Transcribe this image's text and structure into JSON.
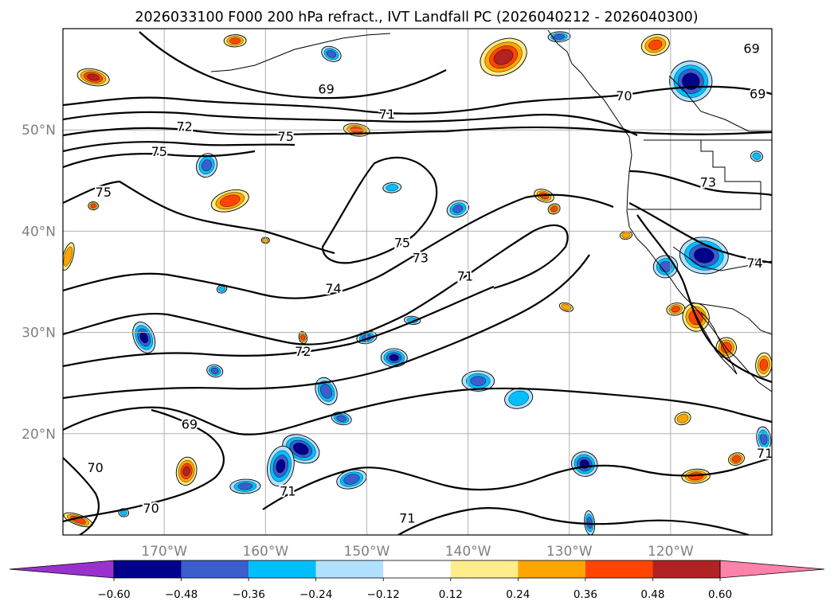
{
  "title": "2026033100 F000 200 hPa refract., IVT Landfall PC (2026040212 - 2026040300)",
  "map": {
    "lon_range": [
      -180,
      -110
    ],
    "lat_range": [
      10,
      60
    ],
    "lon_ticks": [
      {
        "value": -170,
        "label": "170°W"
      },
      {
        "value": -160,
        "label": "160°W"
      },
      {
        "value": -150,
        "label": "150°W"
      },
      {
        "value": -140,
        "label": "140°W"
      },
      {
        "value": -130,
        "label": "130°W"
      },
      {
        "value": -120,
        "label": "120°W"
      }
    ],
    "lat_ticks": [
      {
        "value": 20,
        "label": "20°N"
      },
      {
        "value": 30,
        "label": "30°N"
      },
      {
        "value": 40,
        "label": "40°N"
      },
      {
        "value": 50,
        "label": "50°N"
      }
    ],
    "contour_labels": [
      {
        "text": "69",
        "lon": -154,
        "lat": 54
      },
      {
        "text": "70",
        "lon": -124.6,
        "lat": 53.3
      },
      {
        "text": "69",
        "lon": -111.4,
        "lat": 53.5
      },
      {
        "text": "69",
        "lon": -112,
        "lat": 58
      },
      {
        "text": "72",
        "lon": -168,
        "lat": 50.3
      },
      {
        "text": "71",
        "lon": -148,
        "lat": 51.5
      },
      {
        "text": "75",
        "lon": -158,
        "lat": 49.3
      },
      {
        "text": "75",
        "lon": -170.5,
        "lat": 47.8
      },
      {
        "text": "75",
        "lon": -176,
        "lat": 43.8
      },
      {
        "text": "73",
        "lon": -116.3,
        "lat": 44.8
      },
      {
        "text": "75",
        "lon": -146.5,
        "lat": 38.8
      },
      {
        "text": "73",
        "lon": -144.7,
        "lat": 37.3
      },
      {
        "text": "71",
        "lon": -140.3,
        "lat": 35.5
      },
      {
        "text": "74",
        "lon": -111.7,
        "lat": 36.8
      },
      {
        "text": "74",
        "lon": -153.3,
        "lat": 34.3
      },
      {
        "text": "72",
        "lon": -156.3,
        "lat": 28.1
      },
      {
        "text": "69",
        "lon": -167.5,
        "lat": 20.9
      },
      {
        "text": "70",
        "lon": -176.8,
        "lat": 16.6
      },
      {
        "text": "70",
        "lon": -171.3,
        "lat": 12.6
      },
      {
        "text": "71",
        "lon": -157.8,
        "lat": 14.3
      },
      {
        "text": "71",
        "lon": -146,
        "lat": 11.6
      },
      {
        "text": "71",
        "lon": -110.7,
        "lat": 18
      }
    ]
  },
  "colorbar": {
    "levels": [
      -0.72,
      -0.6,
      -0.48,
      -0.36,
      -0.24,
      -0.12,
      0.12,
      0.24,
      0.36,
      0.48,
      0.6,
      0.72
    ],
    "tick_labels": [
      "−0.60",
      "−0.48",
      "−0.36",
      "−0.24",
      "−0.12",
      "0.12",
      "0.24",
      "0.36",
      "0.48",
      "0.60"
    ],
    "colors": [
      "#9932cc",
      "#00008b",
      "#3a5fcd",
      "#00bfff",
      "#b0e2ff",
      "#ffffff",
      "#ffec8b",
      "#ffa500",
      "#ff4500",
      "#b22222",
      "#ff82ab"
    ],
    "extend": "both"
  },
  "blobs": [
    {
      "lon": -136.5,
      "lat": 57.2,
      "r": [
        2.4,
        1.7
      ],
      "v": 0.55
    },
    {
      "lon": -177,
      "lat": 55.2,
      "r": [
        1.6,
        0.8
      ],
      "v": 0.52
    },
    {
      "lon": -163,
      "lat": 58.8,
      "r": [
        1.1,
        0.6
      ],
      "v": 0.4
    },
    {
      "lon": -121.5,
      "lat": 58.4,
      "r": [
        1.4,
        1.0
      ],
      "v": 0.4
    },
    {
      "lon": -153.5,
      "lat": 57.5,
      "r": [
        1.0,
        0.7
      ],
      "v": -0.4
    },
    {
      "lon": -118,
      "lat": 54.8,
      "r": [
        2.1,
        2.0
      ],
      "v": -0.55
    },
    {
      "lon": -131,
      "lat": 59.2,
      "r": [
        1.1,
        0.5
      ],
      "v": -0.4
    },
    {
      "lon": -163.5,
      "lat": 43,
      "r": [
        1.9,
        1.0
      ],
      "v": 0.45
    },
    {
      "lon": -165.8,
      "lat": 46.5,
      "r": [
        1.0,
        1.2
      ],
      "v": -0.4
    },
    {
      "lon": -151,
      "lat": 50,
      "r": [
        1.3,
        0.6
      ],
      "v": 0.4
    },
    {
      "lon": -147.5,
      "lat": 44.3,
      "r": [
        0.9,
        0.5
      ],
      "v": -0.3
    },
    {
      "lon": -141,
      "lat": 42.2,
      "r": [
        1.1,
        0.8
      ],
      "v": -0.38
    },
    {
      "lon": -132.5,
      "lat": 43.5,
      "r": [
        1.0,
        0.6
      ],
      "v": 0.4
    },
    {
      "lon": -116.7,
      "lat": 37.6,
      "r": [
        2.4,
        1.8
      ],
      "v": -0.55
    },
    {
      "lon": -120.5,
      "lat": 36.5,
      "r": [
        1.2,
        1.1
      ],
      "v": -0.4
    },
    {
      "lon": -117.5,
      "lat": 31.5,
      "r": [
        1.3,
        1.4
      ],
      "v": 0.45
    },
    {
      "lon": -114.5,
      "lat": 28.5,
      "r": [
        1.0,
        1.0
      ],
      "v": 0.45
    },
    {
      "lon": -110.8,
      "lat": 26.8,
      "r": [
        0.8,
        1.2
      ],
      "v": 0.4
    },
    {
      "lon": -110.8,
      "lat": 19.5,
      "r": [
        0.7,
        1.2
      ],
      "v": -0.4
    },
    {
      "lon": -172,
      "lat": 29.5,
      "r": [
        1.0,
        1.6
      ],
      "v": -0.5
    },
    {
      "lon": -165,
      "lat": 26.2,
      "r": [
        0.8,
        0.6
      ],
      "v": -0.4
    },
    {
      "lon": -147.3,
      "lat": 27.5,
      "r": [
        1.3,
        0.9
      ],
      "v": -0.5
    },
    {
      "lon": -150,
      "lat": 29.5,
      "r": [
        1.0,
        0.6
      ],
      "v": -0.4
    },
    {
      "lon": -154,
      "lat": 24.2,
      "r": [
        1.0,
        1.4
      ],
      "v": -0.45
    },
    {
      "lon": -152.5,
      "lat": 21.5,
      "r": [
        1.0,
        0.6
      ],
      "v": -0.4
    },
    {
      "lon": -139,
      "lat": 25.2,
      "r": [
        1.6,
        1.0
      ],
      "v": -0.4
    },
    {
      "lon": -135,
      "lat": 23.5,
      "r": [
        1.4,
        1.0
      ],
      "v": -0.35
    },
    {
      "lon": -156.5,
      "lat": 18.5,
      "r": [
        1.9,
        1.3
      ],
      "v": -0.55
    },
    {
      "lon": -158.5,
      "lat": 16.8,
      "r": [
        1.3,
        2.0
      ],
      "v": -0.48
    },
    {
      "lon": -162,
      "lat": 14.8,
      "r": [
        1.5,
        0.7
      ],
      "v": -0.4
    },
    {
      "lon": -151.5,
      "lat": 15.5,
      "r": [
        1.5,
        0.9
      ],
      "v": -0.45
    },
    {
      "lon": -128.5,
      "lat": 17,
      "r": [
        1.3,
        1.2
      ],
      "v": -0.5
    },
    {
      "lon": -167.8,
      "lat": 16.3,
      "r": [
        1.0,
        1.4
      ],
      "v": 0.48
    },
    {
      "lon": -117.5,
      "lat": 15.8,
      "r": [
        1.4,
        0.7
      ],
      "v": 0.45
    },
    {
      "lon": -113.5,
      "lat": 17.5,
      "r": [
        0.8,
        0.6
      ],
      "v": 0.45
    },
    {
      "lon": -178.5,
      "lat": 11.5,
      "r": [
        1.5,
        0.5
      ],
      "v": 0.45
    },
    {
      "lon": -174,
      "lat": 12.2,
      "r": [
        0.5,
        0.4
      ],
      "v": -0.3
    },
    {
      "lon": -128,
      "lat": 11.2,
      "r": [
        0.5,
        1.2
      ],
      "v": -0.4
    },
    {
      "lon": -118.8,
      "lat": 21.5,
      "r": [
        0.8,
        0.6
      ],
      "v": 0.35
    },
    {
      "lon": -130.3,
      "lat": 32.5,
      "r": [
        0.7,
        0.4
      ],
      "v": 0.35
    },
    {
      "lon": -145.5,
      "lat": 31.2,
      "r": [
        0.8,
        0.4
      ],
      "v": -0.3
    },
    {
      "lon": -124.4,
      "lat": 39.6,
      "r": [
        0.6,
        0.4
      ],
      "v": 0.35
    },
    {
      "lon": -164.3,
      "lat": 34.3,
      "r": [
        0.5,
        0.4
      ],
      "v": -0.3
    },
    {
      "lon": -179.5,
      "lat": 37.5,
      "r": [
        0.5,
        1.4
      ],
      "v": 0.35
    },
    {
      "lon": -177,
      "lat": 42.5,
      "r": [
        0.5,
        0.4
      ],
      "v": 0.4
    },
    {
      "lon": -119.5,
      "lat": 32.3,
      "r": [
        0.9,
        0.6
      ],
      "v": 0.4
    },
    {
      "lon": -131.5,
      "lat": 42.2,
      "r": [
        0.6,
        0.5
      ],
      "v": 0.42
    },
    {
      "lon": -111.5,
      "lat": 47.4,
      "r": [
        0.6,
        0.5
      ],
      "v": -0.3
    },
    {
      "lon": -160,
      "lat": 39.1,
      "r": [
        0.4,
        0.3
      ],
      "v": 0.35
    },
    {
      "lon": -156.3,
      "lat": 29.5,
      "r": [
        0.4,
        0.6
      ],
      "v": 0.4
    }
  ]
}
